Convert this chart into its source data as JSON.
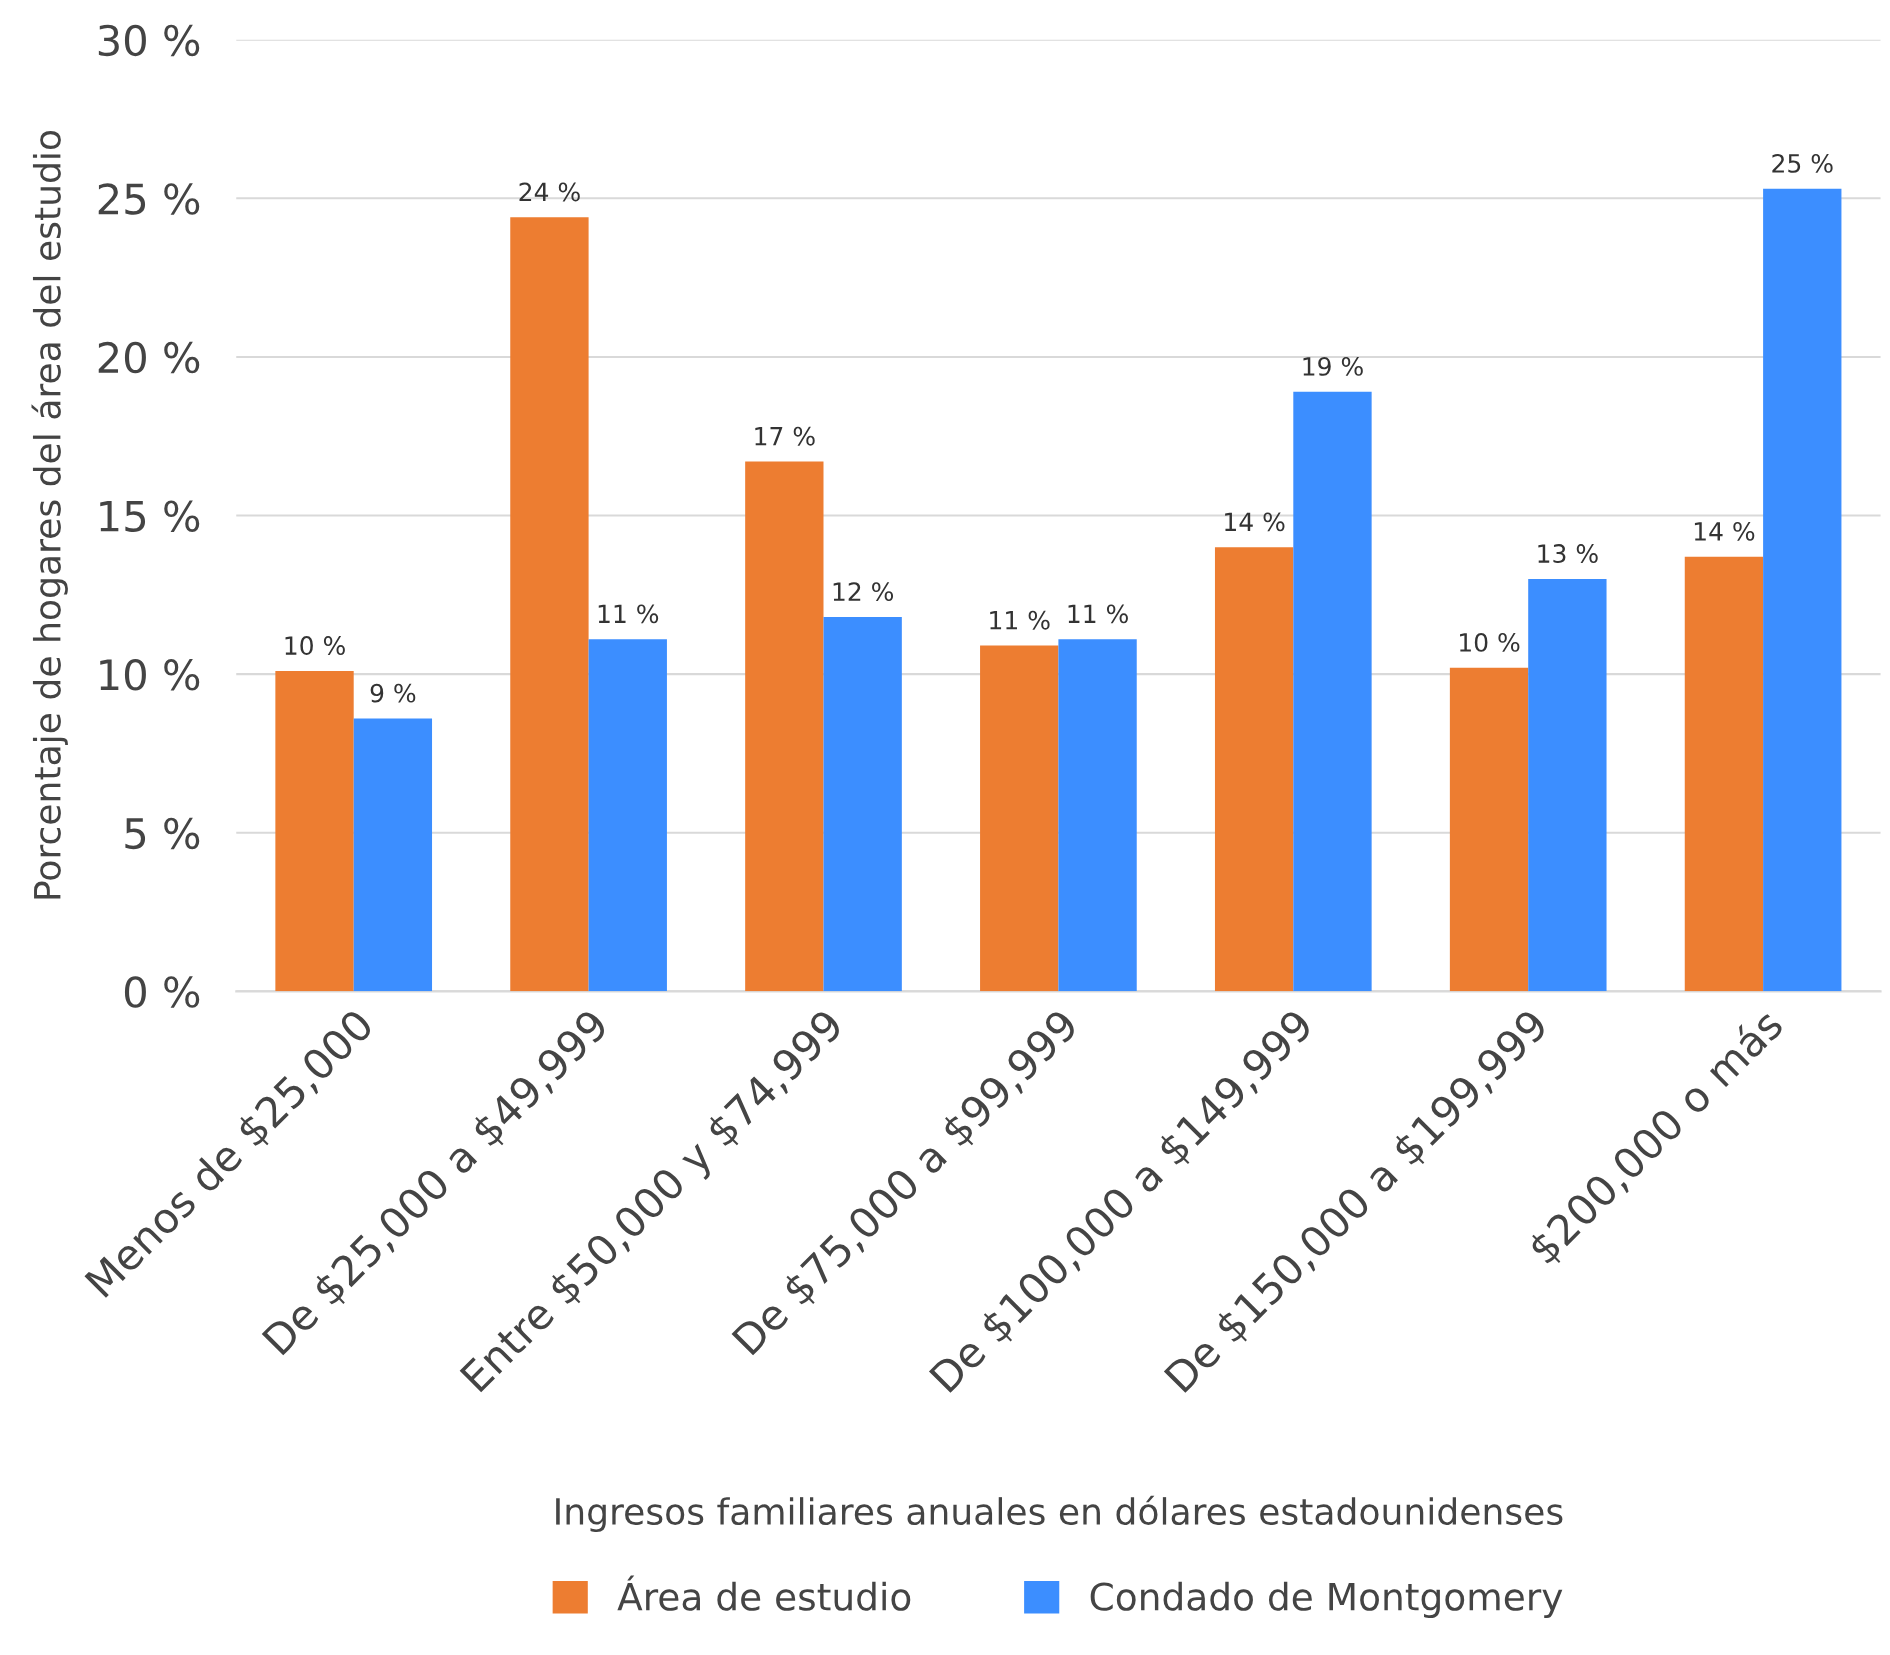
{
  "chart_data": {
    "type": "bar",
    "xlabel": "Ingresos familiares anuales en dólares estadounidenses",
    "ylabel": "Porcentaje de hogares del área del estudio",
    "categories": [
      "Menos de $25,000",
      "De $25,000 a $49,999",
      "Entre $50,000 y $74,999",
      "De $75,000 a $99,999",
      "De $100,000 a $149,999",
      "De $150,000 a $199,999",
      "$200,000 o más"
    ],
    "series": [
      {
        "name": "Área de estudio",
        "color": "#ed7d31",
        "values": [
          10.1,
          24.4,
          16.7,
          10.9,
          14.0,
          10.2,
          13.7
        ],
        "value_labels": [
          "10 %",
          "24 %",
          "17 %",
          "11 %",
          "14 %",
          "10 %",
          "14 %"
        ]
      },
      {
        "name": "Condado de Montgomery",
        "color": "#3c8eff",
        "values": [
          8.6,
          11.1,
          11.8,
          11.1,
          18.9,
          13.0,
          25.3
        ],
        "value_labels": [
          "9 %",
          "11 %",
          "12 %",
          "11 %",
          "19 %",
          "13 %",
          "25 %"
        ]
      }
    ],
    "ylim": [
      0,
      30
    ],
    "yticks": [
      {
        "value": 0,
        "label": "0 %"
      },
      {
        "value": 5,
        "label": "5 %"
      },
      {
        "value": 10,
        "label": "10 %"
      },
      {
        "value": 15,
        "label": "15 %"
      },
      {
        "value": 20,
        "label": "20 %"
      },
      {
        "value": 25,
        "label": "25 %"
      },
      {
        "value": 30,
        "label": "30 %"
      }
    ],
    "grid": "y",
    "legend": "bottom"
  }
}
